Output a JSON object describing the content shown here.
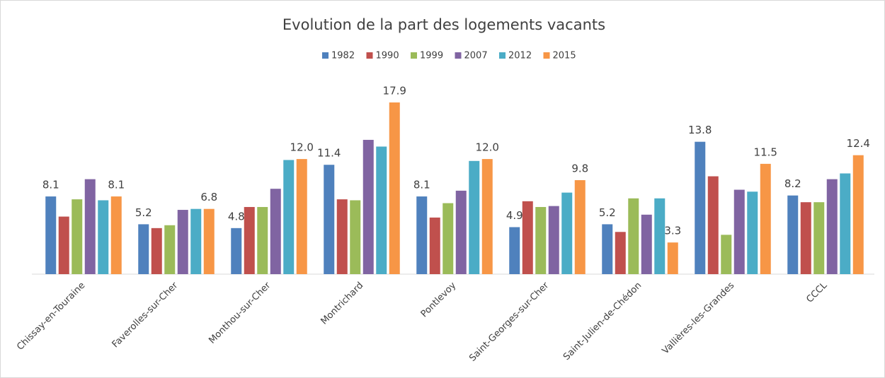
{
  "chart_data": {
    "type": "bar",
    "title": "Evolution de la part des logements vacants",
    "categories": [
      "Chissay-en-Touraine",
      "Faverolles-sur-Cher",
      "Monthou-sur-Cher",
      "Montrichard",
      "Pontlevoy",
      "Saint-Georges-sur-Cher",
      "Saint-Julien-de-Chédon",
      "Vallières-les-Grandes",
      "CCCL"
    ],
    "legend": "top",
    "series": [
      {
        "name": "1982",
        "color": "#4f81bd",
        "values": [
          8.1,
          5.2,
          4.8,
          11.4,
          8.1,
          4.9,
          5.2,
          13.8,
          8.2
        ],
        "value_labels": [
          "8.1",
          "5.2",
          "4.8",
          "11.4",
          "8.1",
          "4.9",
          "5.2",
          "13.8",
          "8.2"
        ]
      },
      {
        "name": "1990",
        "color": "#c0504d",
        "values": [
          6.0,
          4.8,
          7.0,
          7.8,
          5.9,
          7.6,
          4.4,
          10.2,
          7.5
        ]
      },
      {
        "name": "1999",
        "color": "#9bbb59",
        "values": [
          7.8,
          5.1,
          7.0,
          7.7,
          7.4,
          7.0,
          7.9,
          4.1,
          7.5
        ]
      },
      {
        "name": "2007",
        "color": "#8064a2",
        "values": [
          9.9,
          6.7,
          8.9,
          14.0,
          8.7,
          7.1,
          6.2,
          8.8,
          9.9
        ]
      },
      {
        "name": "2012",
        "color": "#4bacc6",
        "values": [
          7.7,
          6.8,
          11.9,
          13.3,
          11.8,
          8.5,
          7.9,
          8.6,
          10.5
        ]
      },
      {
        "name": "2015",
        "color": "#f79646",
        "values": [
          8.1,
          6.8,
          12.0,
          17.9,
          12.0,
          9.8,
          3.3,
          11.5,
          12.4
        ],
        "value_labels": [
          "8.1",
          "6.8",
          "12.0",
          "17.9",
          "12.0",
          "9.8",
          "3.3",
          "11.5",
          "12.4"
        ]
      }
    ]
  }
}
